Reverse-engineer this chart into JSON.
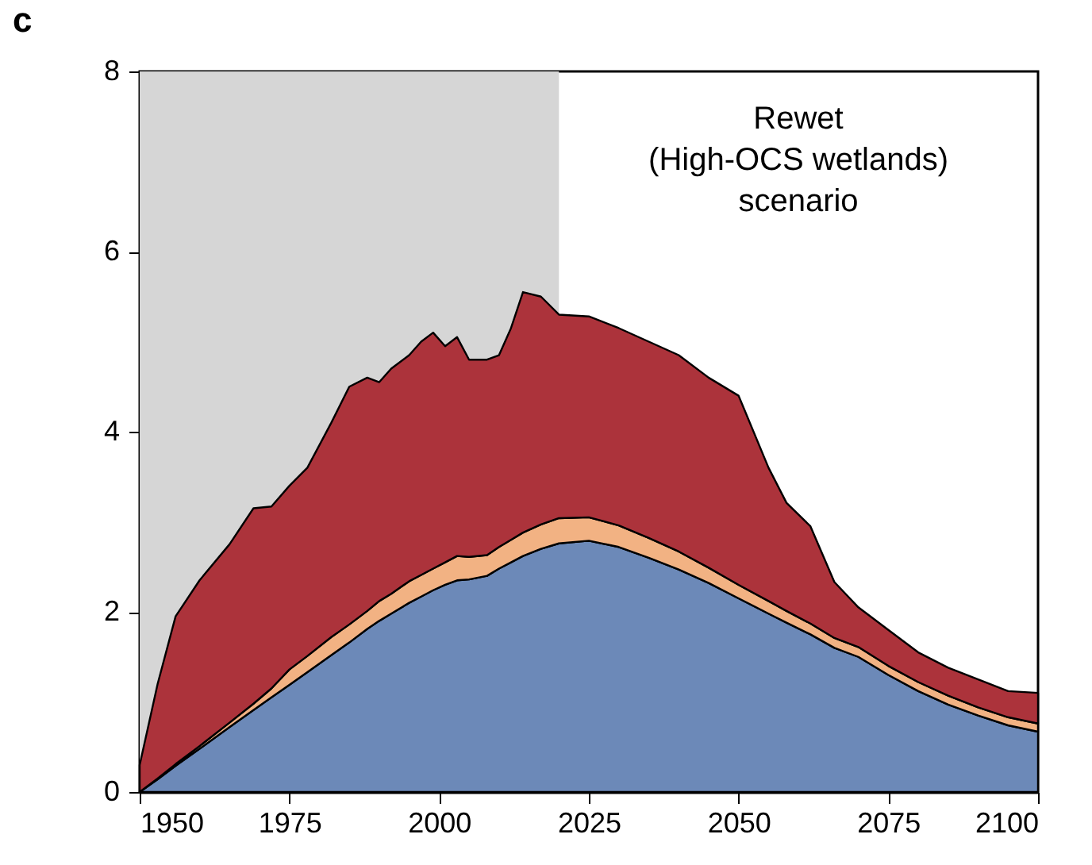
{
  "chart_data": {
    "type": "area",
    "title": "c",
    "stacked": true,
    "x": [
      1950,
      1953,
      1956,
      1960,
      1965,
      1969,
      1972,
      1975,
      1978,
      1982,
      1985,
      1988,
      1990,
      1992,
      1995,
      1997,
      1999,
      2001,
      2003,
      2005,
      2008,
      2010,
      2012,
      2014,
      2017,
      2020,
      2025,
      2030,
      2035,
      2040,
      2045,
      2050,
      2055,
      2058,
      2062,
      2066,
      2070,
      2075,
      2080,
      2085,
      2090,
      2095,
      2100
    ],
    "series": [
      {
        "color": "#6c89b8",
        "values": [
          0,
          0.14,
          0.29,
          0.48,
          0.72,
          0.91,
          1.05,
          1.19,
          1.33,
          1.52,
          1.66,
          1.81,
          1.9,
          1.98,
          2.1,
          2.17,
          2.24,
          2.3,
          2.35,
          2.36,
          2.4,
          2.48,
          2.55,
          2.62,
          2.7,
          2.76,
          2.79,
          2.72,
          2.6,
          2.47,
          2.32,
          2.15,
          1.98,
          1.88,
          1.75,
          1.6,
          1.5,
          1.3,
          1.12,
          0.97,
          0.85,
          0.74,
          0.67
        ]
      },
      {
        "color": "#f2b283",
        "values": [
          0,
          0.01,
          0.02,
          0.03,
          0.05,
          0.07,
          0.1,
          0.17,
          0.18,
          0.2,
          0.2,
          0.2,
          0.22,
          0.22,
          0.24,
          0.24,
          0.24,
          0.25,
          0.27,
          0.25,
          0.23,
          0.24,
          0.25,
          0.26,
          0.27,
          0.28,
          0.26,
          0.24,
          0.22,
          0.2,
          0.17,
          0.15,
          0.14,
          0.13,
          0.12,
          0.11,
          0.11,
          0.1,
          0.1,
          0.1,
          0.09,
          0.09,
          0.09
        ]
      },
      {
        "color": "#ac333b",
        "values": [
          0.3,
          1.05,
          1.64,
          1.84,
          1.98,
          2.17,
          2.02,
          2.04,
          2.09,
          2.38,
          2.64,
          2.59,
          2.43,
          2.5,
          2.51,
          2.59,
          2.62,
          2.4,
          2.43,
          2.19,
          2.17,
          2.13,
          2.35,
          2.67,
          2.53,
          2.26,
          2.23,
          2.19,
          2.18,
          2.18,
          2.11,
          2.1,
          1.48,
          1.2,
          1.08,
          0.62,
          0.44,
          0.4,
          0.33,
          0.31,
          0.31,
          0.29,
          0.34
        ]
      }
    ],
    "xlim": [
      1950,
      2100
    ],
    "xticks": [
      1950,
      1975,
      2000,
      2025,
      2050,
      2075,
      2100
    ],
    "ylim": [
      0,
      8
    ],
    "yticks": [
      0,
      2,
      4,
      6,
      8
    ],
    "bands": [
      {
        "axis": "x",
        "from": 1950,
        "to": 2020,
        "color": "#d6d6d6"
      }
    ],
    "annotations": [
      "Rewet\n(High-OCS wetlands)\nscenario"
    ],
    "grid": false
  }
}
